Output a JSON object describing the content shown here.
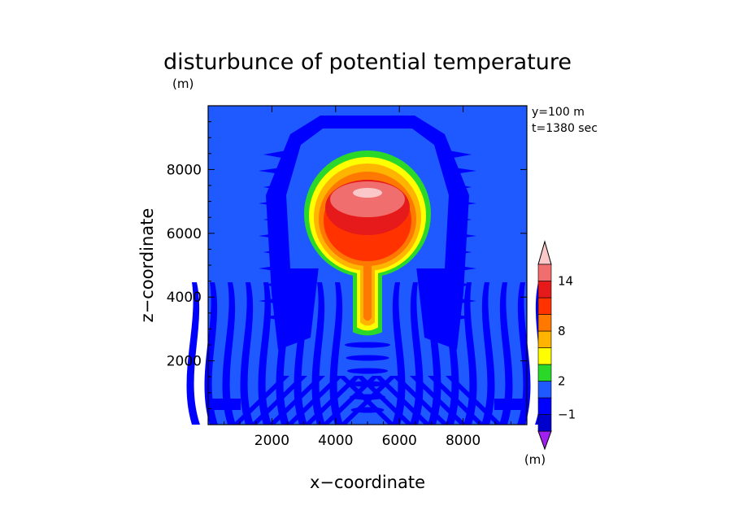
{
  "chart_data": {
    "type": "heatmap",
    "title": "disturbunce of potential temperature",
    "subtitle": "(m)",
    "xlabel": "x−coordinate",
    "ylabel": "z−coordinate",
    "xlim": [
      0,
      10000
    ],
    "ylim": [
      0,
      10000
    ],
    "x_ticks": [
      "2000",
      "4000",
      "6000",
      "8000"
    ],
    "x_tick_values": [
      2000,
      4000,
      6000,
      8000
    ],
    "y_ticks": [
      "2000",
      "4000",
      "6000",
      "8000"
    ],
    "y_tick_values": [
      2000,
      4000,
      6000,
      8000
    ],
    "annotation_lines": [
      "y=100 m",
      "t=1380 sec"
    ],
    "colorbar": {
      "levels": [
        -2,
        -1,
        0,
        2,
        4,
        6,
        8,
        10,
        12,
        14,
        16
      ],
      "colors": [
        "#a020f0",
        "#0000cd",
        "#0000ff",
        "#1e5aff",
        "#2ad82a",
        "#ffff00",
        "#ffb400",
        "#ff7800",
        "#ff3200",
        "#e61a1a",
        "#f06e6e",
        "#fac8c8"
      ],
      "tick_labels": [
        "−1",
        "2",
        "8",
        "14"
      ],
      "tick_label_values": [
        -1,
        2,
        8,
        14
      ],
      "unit": "(m)"
    },
    "background_value": 0.5,
    "features": {
      "plume_head_center": [
        5000,
        6300
      ],
      "plume_stem_bottom": [
        5000,
        2900
      ],
      "plume_max_value": 15
    },
    "grid": false
  }
}
